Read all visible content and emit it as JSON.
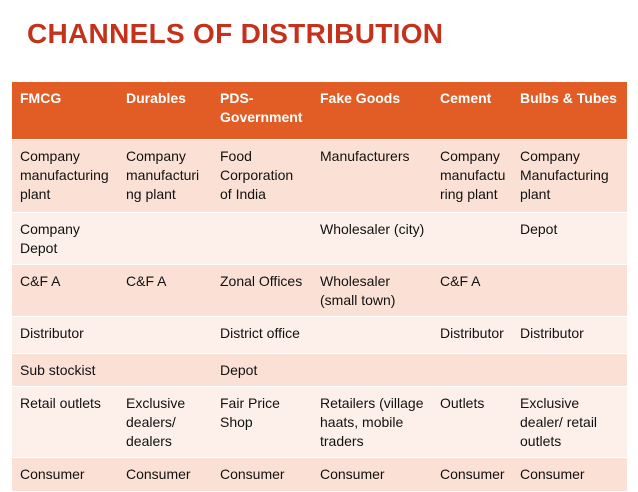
{
  "header": {
    "title": "CHANNELS OF DISTRIBUTION"
  },
  "table": {
    "columns": [
      "FMCG",
      "Durables",
      "PDS- Government",
      "Fake Goods",
      "Cement",
      "Bulbs & Tubes"
    ],
    "rows": [
      [
        "Company manufacturing plant",
        "Company manufacturing plant",
        "Food Corporation of India",
        "Manufacturers",
        "Company manufacturing plant",
        "Company Manufacturing plant"
      ],
      [
        "Company Depot",
        null,
        null,
        "Wholesaler (city)",
        null,
        "Depot"
      ],
      [
        "C&F A",
        "C&F A",
        "Zonal Offices",
        "Wholesaler (small town)",
        "C&F A",
        null
      ],
      [
        "Distributor",
        null,
        "District office",
        null,
        "Distributor",
        "Distributor"
      ],
      [
        "Sub stockist",
        null,
        "Depot",
        null,
        null,
        null
      ],
      [
        "Retail outlets",
        "Exclusive dealers/ dealers",
        "Fair Price Shop",
        "Retailers (village haats, mobile traders",
        "Outlets",
        "Exclusive dealer/ retail outlets"
      ],
      [
        "Consumer",
        "Consumer",
        "Consumer",
        "Consumer",
        "Consumer",
        "Consumer"
      ]
    ]
  }
}
